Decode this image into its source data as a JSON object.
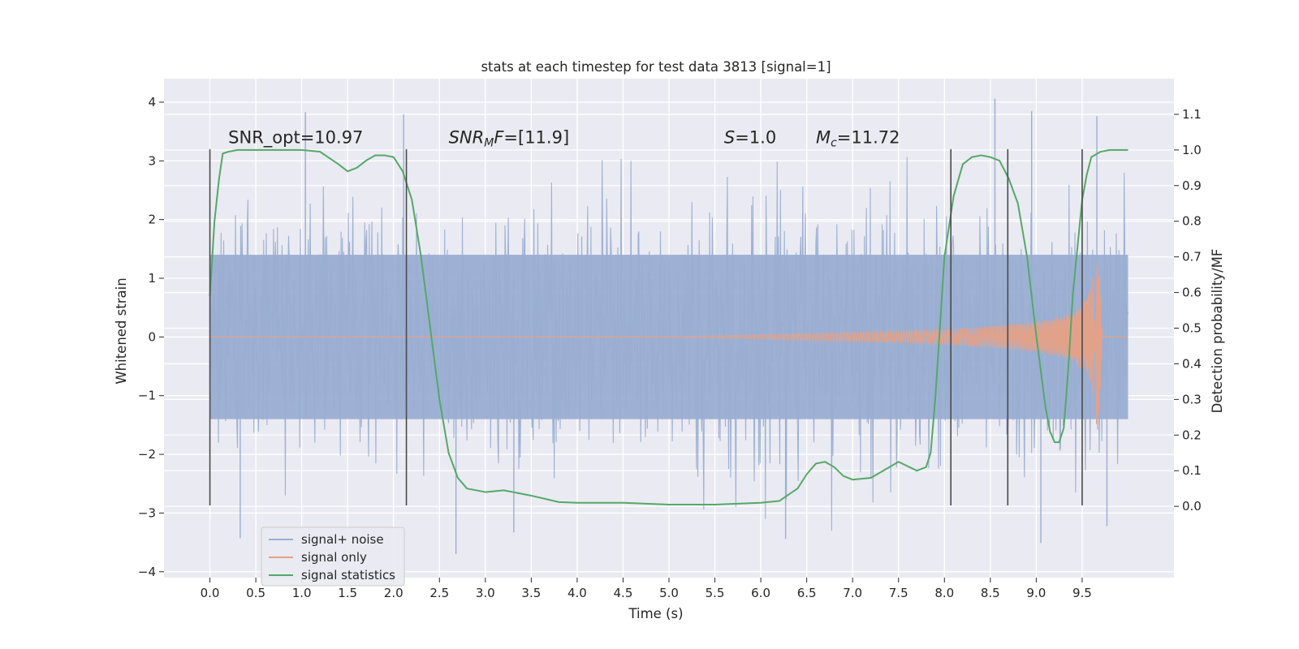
{
  "chart_data": {
    "type": "line",
    "title": "stats at each timestep for test data 3813 [signal=1]",
    "xlabel": "Time (s)",
    "ylabel": "Whitened strain",
    "y2label": "Detection probability/MF",
    "xlim": [
      -0.5,
      10.5
    ],
    "ylim": [
      -4.1,
      4.4
    ],
    "y2lim": [
      -0.2,
      1.2
    ],
    "x_ticks": [
      0.0,
      0.5,
      1.0,
      1.5,
      2.0,
      2.5,
      3.0,
      3.5,
      4.0,
      4.5,
      5.0,
      5.5,
      6.0,
      6.5,
      7.0,
      7.5,
      8.0,
      8.5,
      9.0,
      9.5
    ],
    "x_tick_labels": [
      "0.0",
      "0.5",
      "1.0",
      "1.5",
      "2.0",
      "2.5",
      "3.0",
      "3.5",
      "4.0",
      "4.5",
      "5.0",
      "5.5",
      "6.0",
      "6.5",
      "7.0",
      "7.5",
      "8.0",
      "8.5",
      "9.0",
      "9.5"
    ],
    "y_ticks": [
      4,
      3,
      2,
      1,
      0,
      -1,
      -2,
      -3,
      -4
    ],
    "y_tick_labels": [
      "4",
      "3",
      "2",
      "1",
      "0",
      "−1",
      "−2",
      "−3",
      "−4"
    ],
    "y2_ticks": [
      1.1,
      1.0,
      0.9,
      0.8,
      0.7,
      0.6,
      0.5,
      0.4,
      0.3,
      0.2,
      0.1,
      0.0
    ],
    "y2_tick_labels": [
      "1.1",
      "1.0",
      "0.9",
      "0.8",
      "0.7",
      "0.6",
      "0.5",
      "0.4",
      "0.3",
      "0.2",
      "0.1",
      "0.0"
    ],
    "grid": true,
    "legend_position": "lower-left",
    "annotations": [
      {
        "id": "snr-opt",
        "x": 0.2,
        "y": 3.3,
        "parts": [
          {
            "text": "SNR_opt=10.97"
          }
        ]
      },
      {
        "id": "snr-mf",
        "x": 2.6,
        "y": 3.3,
        "parts": [
          {
            "text": "SNR",
            "italic": true
          },
          {
            "text": "M",
            "italic": true,
            "sub": true
          },
          {
            "text": "F",
            "italic": true
          },
          {
            "text": "=[11.9]"
          }
        ]
      },
      {
        "id": "s-stat",
        "x": 5.6,
        "y": 3.3,
        "parts": [
          {
            "text": "S",
            "italic": true
          },
          {
            "text": "=1.0"
          }
        ]
      },
      {
        "id": "mc",
        "x": 6.6,
        "y": 3.3,
        "parts": [
          {
            "text": "M",
            "italic": true
          },
          {
            "text": "c",
            "italic": true,
            "sub": true
          },
          {
            "text": "=11.72"
          }
        ]
      }
    ],
    "vlines": {
      "x": [
        0.0,
        2.14,
        8.07,
        8.69,
        9.5
      ],
      "ymin": -2.87,
      "ymax": 3.2
    },
    "series": [
      {
        "name": "signal+ noise",
        "color": "#9AAED2",
        "kind": "noise",
        "x_range": [
          0.0,
          10.0
        ],
        "band_mean_abs": 1.38,
        "band_min": 1.4,
        "peaks": [
          {
            "x": 1.04,
            "y": 3.83
          },
          {
            "x": 2.11,
            "y": 3.79
          },
          {
            "x": 8.55,
            "y": 4.06
          },
          {
            "x": 8.95,
            "y": 3.85
          },
          {
            "x": 9.66,
            "y": 3.76
          },
          {
            "x": 0.33,
            "y": -3.43
          },
          {
            "x": 2.68,
            "y": -3.7
          },
          {
            "x": 3.31,
            "y": -3.33
          },
          {
            "x": 6.27,
            "y": -3.44
          },
          {
            "x": 9.05,
            "y": -3.51
          },
          {
            "x": 9.77,
            "y": -3.22
          }
        ]
      },
      {
        "name": "signal only",
        "color": "#E6A186",
        "kind": "chirp",
        "x": [
          0.0,
          5.0,
          5.5,
          6.0,
          6.5,
          7.0,
          7.5,
          8.0,
          8.5,
          9.0,
          9.3,
          9.5,
          9.6,
          9.68,
          9.72,
          10.0
        ],
        "envelope": [
          0.0,
          0.01,
          0.02,
          0.04,
          0.06,
          0.08,
          0.1,
          0.13,
          0.18,
          0.26,
          0.35,
          0.55,
          0.85,
          1.75,
          0.0,
          0.0
        ]
      },
      {
        "name": "signal statistics",
        "color": "#55A868",
        "axis": "y2",
        "x": [
          0.0,
          0.05,
          0.1,
          0.14,
          0.2,
          0.3,
          0.5,
          0.8,
          1.0,
          1.2,
          1.4,
          1.5,
          1.6,
          1.7,
          1.8,
          1.9,
          2.0,
          2.1,
          2.2,
          2.3,
          2.4,
          2.5,
          2.6,
          2.7,
          2.8,
          3.0,
          3.2,
          3.5,
          3.8,
          4.0,
          4.5,
          5.0,
          5.5,
          6.0,
          6.2,
          6.4,
          6.5,
          6.6,
          6.7,
          6.8,
          6.9,
          7.0,
          7.2,
          7.5,
          7.7,
          7.8,
          7.85,
          7.9,
          8.0,
          8.1,
          8.2,
          8.3,
          8.4,
          8.5,
          8.6,
          8.7,
          8.8,
          8.9,
          9.0,
          9.1,
          9.15,
          9.2,
          9.25,
          9.3,
          9.35,
          9.4,
          9.5,
          9.55,
          9.6,
          9.7,
          9.8,
          10.0
        ],
        "values": [
          0.59,
          0.8,
          0.92,
          0.99,
          0.995,
          1.0,
          1.0,
          1.0,
          1.0,
          0.995,
          0.96,
          0.94,
          0.95,
          0.97,
          0.985,
          0.985,
          0.98,
          0.94,
          0.86,
          0.7,
          0.5,
          0.3,
          0.15,
          0.08,
          0.05,
          0.04,
          0.045,
          0.03,
          0.012,
          0.01,
          0.01,
          0.005,
          0.005,
          0.01,
          0.015,
          0.05,
          0.09,
          0.12,
          0.125,
          0.11,
          0.085,
          0.075,
          0.08,
          0.125,
          0.1,
          0.11,
          0.15,
          0.3,
          0.7,
          0.87,
          0.96,
          0.98,
          0.985,
          0.98,
          0.97,
          0.92,
          0.85,
          0.7,
          0.48,
          0.28,
          0.21,
          0.18,
          0.18,
          0.22,
          0.39,
          0.6,
          0.86,
          0.93,
          0.98,
          0.995,
          1.0,
          1.0
        ]
      }
    ]
  }
}
